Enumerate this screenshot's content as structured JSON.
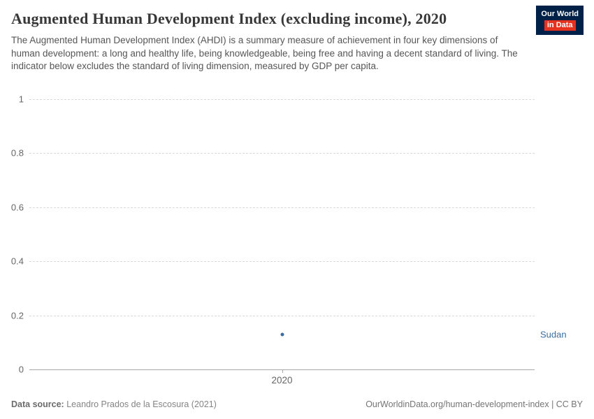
{
  "header": {
    "title": "Augmented Human Development Index (excluding income), 2020",
    "subtitle": "The Augmented Human Development Index (AHDI) is a summary measure of achievement in four key dimensions of human development: a long and healthy life, being knowledgeable, being free and having a decent standard of living. The indicator below excludes the standard of living dimension, measured by GDP per capita.",
    "logo": {
      "line1": "Our World",
      "line2": "in Data",
      "bg": "#002147",
      "accent": "#e5321f"
    }
  },
  "chart_data": {
    "type": "scatter",
    "title": "Augmented Human Development Index (excluding income), 2020",
    "x": [
      "2020"
    ],
    "series": [
      {
        "name": "Sudan",
        "values": [
          0.13
        ],
        "color": "#3d6d9e"
      }
    ],
    "ylim": [
      0,
      1
    ],
    "yticks": [
      "0",
      "0.2",
      "0.4",
      "0.6",
      "0.8",
      "1"
    ],
    "xlabel": "",
    "ylabel": "",
    "grid": "dashed-horizontal",
    "legend_position": "right-of-point"
  },
  "footer": {
    "source_label": "Data source:",
    "source_text": " Leandro Prados de la Escosura (2021)",
    "credit": "OurWorldinData.org/human-development-index | CC BY"
  }
}
